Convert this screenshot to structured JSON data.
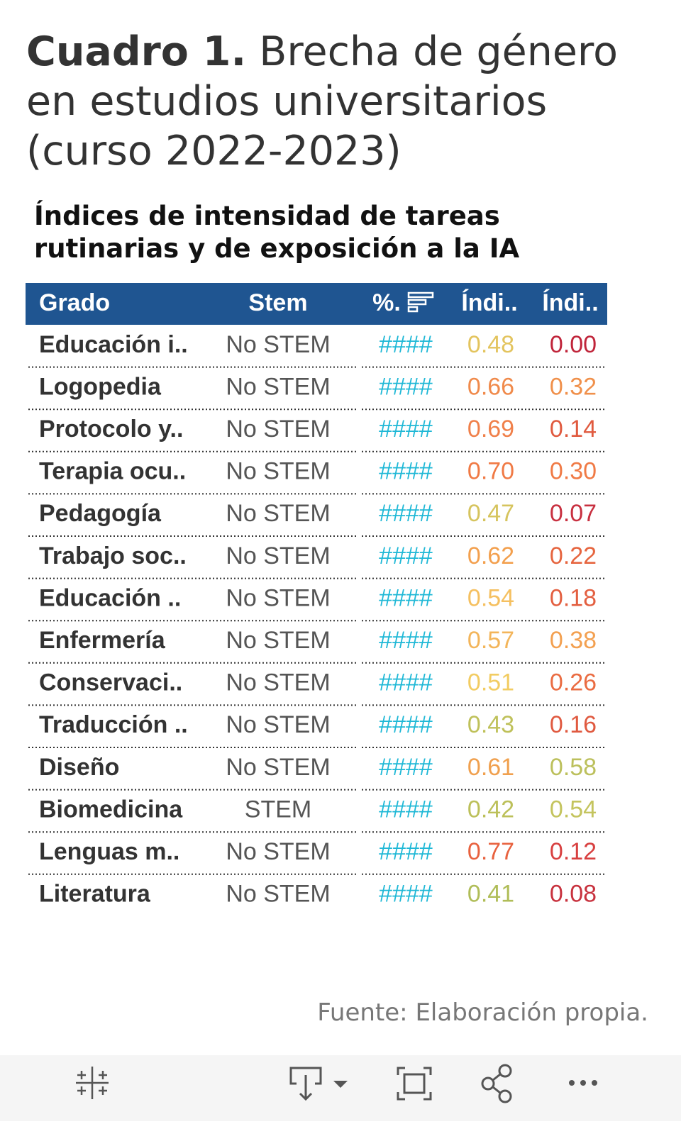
{
  "title_bold": "Cuadro 1.",
  "title_rest": "Brecha de género en estudios universitarios (curso 2022-2023)",
  "subtitle": "Índices de intensidad de tareas rutinarias y de exposición a la IA",
  "table": {
    "header": [
      "Grado",
      "Stem",
      "%.",
      "Índi..",
      "Índi.."
    ],
    "header_color": "#1f5591",
    "rows": [
      [
        "Educación i..",
        "No STEM",
        "####",
        "0.48",
        "0.00"
      ],
      [
        "Logopedia",
        "No STEM",
        "####",
        "0.66",
        "0.32"
      ],
      [
        "Protocolo y..",
        "No STEM",
        "####",
        "0.69",
        "0.14"
      ],
      [
        "Terapia ocu..",
        "No STEM",
        "####",
        "0.70",
        "0.30"
      ],
      [
        "Pedagogía",
        "No STEM",
        "####",
        "0.47",
        "0.07"
      ],
      [
        "Trabajo soc..",
        "No STEM",
        "####",
        "0.62",
        "0.22"
      ],
      [
        "Educación ..",
        "No STEM",
        "####",
        "0.54",
        "0.18"
      ],
      [
        "Enfermería",
        "No STEM",
        "####",
        "0.57",
        "0.38"
      ],
      [
        "Conservaci..",
        "No STEM",
        "####",
        "0.51",
        "0.26"
      ],
      [
        "Traducción ..",
        "No STEM",
        "####",
        "0.43",
        "0.16"
      ],
      [
        "Diseño",
        "No STEM",
        "####",
        "0.61",
        "0.58"
      ],
      [
        "Biomedicina",
        "STEM",
        "####",
        "0.42",
        "0.54"
      ],
      [
        "Lenguas m..",
        "No STEM",
        "####",
        "0.77",
        "0.12"
      ],
      [
        "Literatura",
        "No STEM",
        "####",
        "0.41",
        "0.08"
      ]
    ],
    "cell_colors": [
      [
        "#e3c45e",
        "#c0243a"
      ],
      [
        "#f08a4b",
        "#f0904b"
      ],
      [
        "#f0804a",
        "#e05a3f"
      ],
      [
        "#f07a45",
        "#f07a45"
      ],
      [
        "#d6c45e",
        "#c83040"
      ],
      [
        "#f3a04e",
        "#e6653f"
      ],
      [
        "#f5c060",
        "#e35f40"
      ],
      [
        "#f3b55a",
        "#f3a050"
      ],
      [
        "#f2cc62",
        "#ea6c42"
      ],
      [
        "#bfc15a",
        "#e05a40"
      ],
      [
        "#f0a04e",
        "#bcc05c"
      ],
      [
        "#bcc05a",
        "#c4c45e"
      ],
      [
        "#e8623f",
        "#d84040"
      ],
      [
        "#b0bd58",
        "#c8323e"
      ]
    ]
  },
  "source": "Fuente: Elaboración propia."
}
